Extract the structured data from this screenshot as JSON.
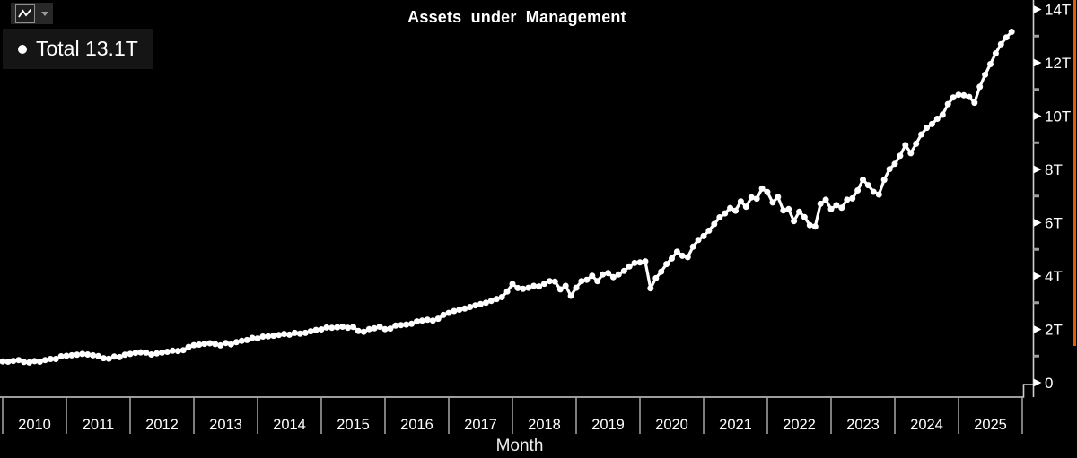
{
  "title": "Assets under Management",
  "legend": {
    "marker": "dot",
    "label": "Total 13.1T"
  },
  "toolbar": {
    "chart_type_icon": "line-chart",
    "dropdown_icon": "caret-down"
  },
  "x_axis": {
    "label": "Month",
    "years": [
      "2010",
      "2011",
      "2012",
      "2013",
      "2014",
      "2015",
      "2016",
      "2017",
      "2018",
      "2019",
      "2020",
      "2021",
      "2022",
      "2023",
      "2024",
      "2025"
    ]
  },
  "y_axis": {
    "major_labels": [
      "0",
      "2T",
      "4T",
      "6T",
      "8T",
      "10T",
      "12T",
      "14T"
    ],
    "minor_tick_values": [
      1,
      3,
      5,
      7,
      9,
      11,
      13
    ]
  },
  "colors": {
    "background": "#000000",
    "series": "#ffffff",
    "axis": "#cfcfcf",
    "x_tick": "#a8a8a8",
    "y_minor_tick": "#9c9c9c",
    "text": "#ffffff",
    "legend_bg": "#151515",
    "button_bg": "#282828",
    "scroll": "#e65c00"
  },
  "chart_data": {
    "type": "line",
    "title": "Assets under Management",
    "xlabel": "Month",
    "ylabel": "",
    "ylim": [
      0,
      14
    ],
    "y_unit": "T",
    "grid": false,
    "legend_position": "top-left",
    "marker": "circle",
    "frequency": "monthly",
    "x_start": "2009-12",
    "x_end": "2025-11",
    "x_tick_years": [
      2010,
      2011,
      2012,
      2013,
      2014,
      2015,
      2016,
      2017,
      2018,
      2019,
      2020,
      2021,
      2022,
      2023,
      2024,
      2025
    ],
    "series": [
      {
        "name": "Total",
        "last_value_label": "13.1T",
        "color": "#ffffff",
        "values": [
          0.78,
          0.8,
          0.79,
          0.82,
          0.85,
          0.78,
          0.76,
          0.81,
          0.79,
          0.85,
          0.89,
          0.89,
          0.99,
          1.01,
          1.03,
          1.05,
          1.08,
          1.06,
          1.03,
          1.0,
          0.92,
          0.9,
          0.98,
          0.96,
          1.05,
          1.08,
          1.12,
          1.14,
          1.13,
          1.06,
          1.1,
          1.13,
          1.16,
          1.2,
          1.19,
          1.22,
          1.34,
          1.41,
          1.43,
          1.46,
          1.48,
          1.45,
          1.4,
          1.49,
          1.44,
          1.52,
          1.57,
          1.6,
          1.68,
          1.66,
          1.73,
          1.74,
          1.76,
          1.79,
          1.83,
          1.8,
          1.87,
          1.84,
          1.87,
          1.93,
          1.98,
          2.0,
          2.07,
          2.06,
          2.08,
          2.1,
          2.06,
          2.09,
          1.94,
          1.91,
          2.01,
          2.04,
          2.1,
          2.01,
          2.03,
          2.14,
          2.16,
          2.18,
          2.21,
          2.3,
          2.33,
          2.36,
          2.33,
          2.4,
          2.54,
          2.62,
          2.69,
          2.74,
          2.78,
          2.84,
          2.9,
          2.95,
          3.0,
          3.07,
          3.14,
          3.21,
          3.42,
          3.7,
          3.55,
          3.52,
          3.56,
          3.63,
          3.61,
          3.71,
          3.81,
          3.79,
          3.5,
          3.63,
          3.26,
          3.56,
          3.81,
          3.86,
          4.01,
          3.81,
          4.06,
          4.11,
          3.96,
          4.06,
          4.19,
          4.36,
          4.49,
          4.51,
          4.55,
          3.54,
          3.92,
          4.16,
          4.45,
          4.66,
          4.91,
          4.76,
          4.71,
          5.1,
          5.35,
          5.5,
          5.7,
          5.95,
          6.2,
          6.35,
          6.55,
          6.45,
          6.8,
          6.6,
          6.95,
          6.9,
          7.28,
          7.15,
          6.76,
          6.96,
          6.46,
          6.51,
          6.06,
          6.41,
          6.21,
          5.91,
          5.86,
          6.71,
          6.86,
          6.51,
          6.66,
          6.56,
          6.86,
          6.91,
          7.21,
          7.61,
          7.41,
          7.16,
          7.06,
          7.61,
          8.01,
          8.21,
          8.51,
          8.91,
          8.61,
          8.96,
          9.31,
          9.56,
          9.7,
          9.9,
          10.05,
          10.45,
          10.7,
          10.8,
          10.78,
          10.72,
          10.5,
          11.1,
          11.55,
          11.95,
          12.35,
          12.7,
          12.95,
          13.16
        ]
      }
    ]
  }
}
